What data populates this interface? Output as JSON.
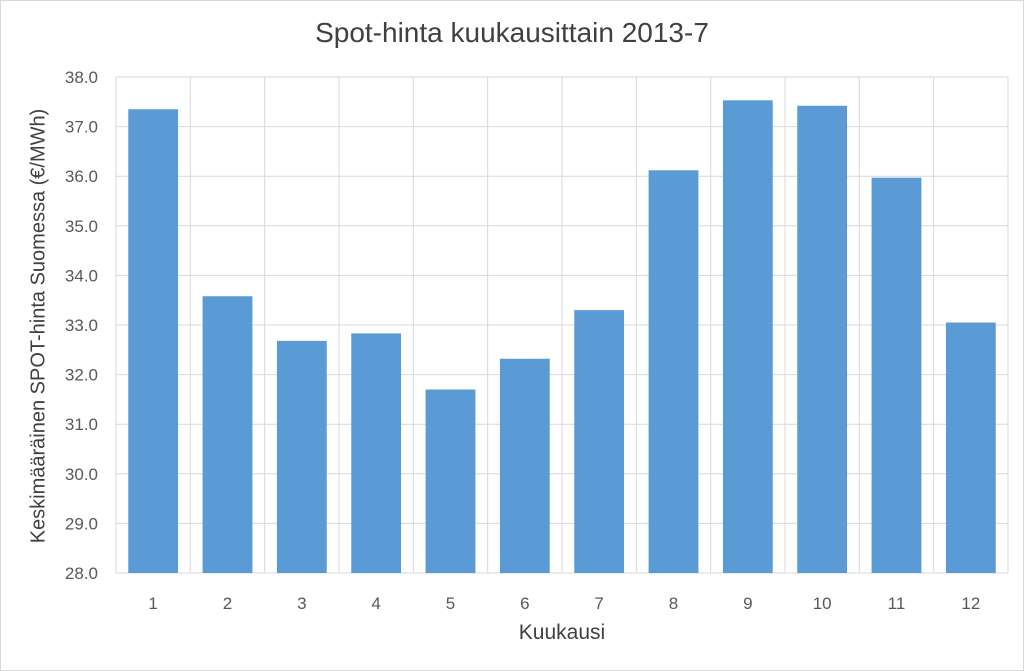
{
  "chart_data": {
    "type": "bar",
    "title": "Spot-hinta kuukausittain 2013-7",
    "xlabel": "Kuukausi",
    "ylabel": "Keskimääräinen SPOT-hinta Suomessa (€/MWh)",
    "categories": [
      "1",
      "2",
      "3",
      "4",
      "5",
      "6",
      "7",
      "8",
      "9",
      "10",
      "11",
      "12"
    ],
    "values": [
      37.35,
      33.58,
      32.68,
      32.83,
      31.7,
      32.32,
      33.3,
      36.12,
      37.53,
      37.42,
      35.97,
      33.05
    ],
    "ylim": [
      28.0,
      38.0
    ],
    "yticks": [
      "28.0",
      "29.0",
      "30.0",
      "31.0",
      "32.0",
      "33.0",
      "34.0",
      "35.0",
      "36.0",
      "37.0",
      "38.0"
    ],
    "grid": true,
    "legend": "none",
    "bar_color": "#5b9bd5",
    "grid_color": "#d9d9d9"
  }
}
